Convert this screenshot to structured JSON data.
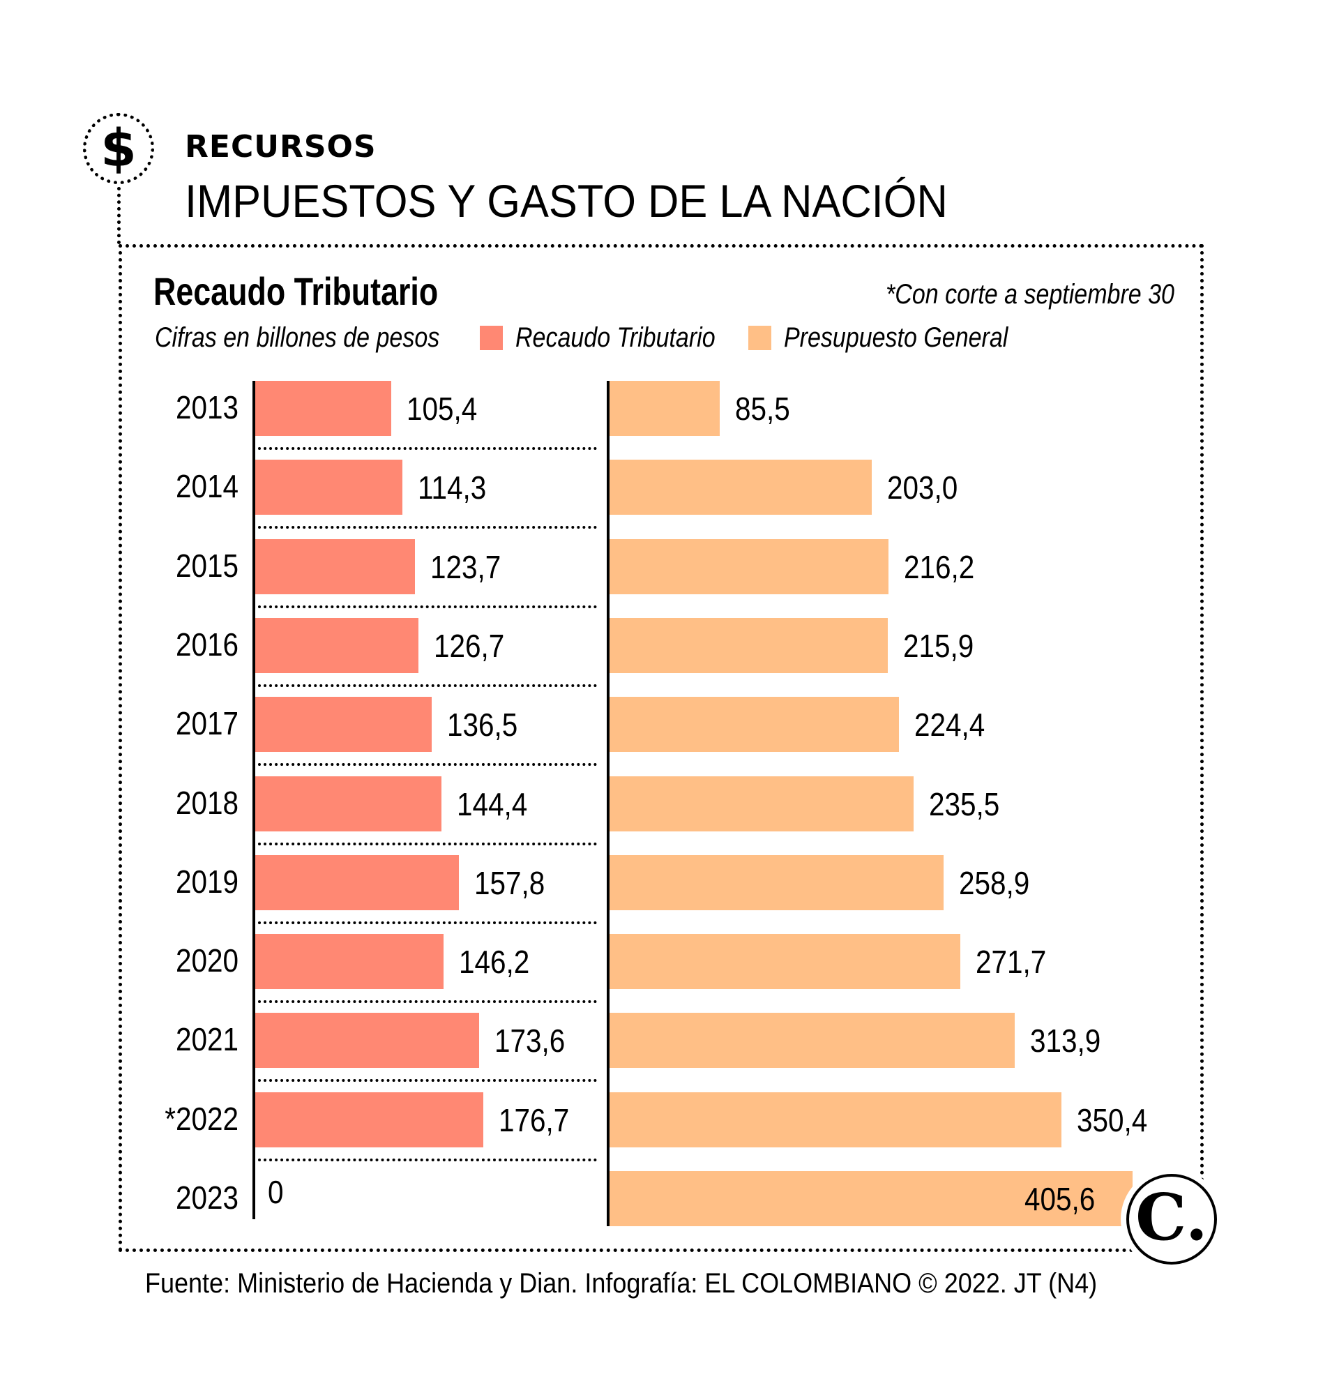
{
  "header": {
    "icon": "dollar-icon",
    "kicker": "RECURSOS",
    "headline": "IMPUESTOS Y GASTO DE LA NACIÓN"
  },
  "chart_data": {
    "type": "bar",
    "orientation": "horizontal",
    "title": "Recaudo Tributario",
    "subtitle": "Cifras en billones de pesos",
    "note": "*Con corte a septiembre 30",
    "categories": [
      "2013",
      "2014",
      "2015",
      "2016",
      "2017",
      "2018",
      "2019",
      "2020",
      "2021",
      "*2022",
      "2023"
    ],
    "series": [
      {
        "name": "Recaudo Tributario",
        "color": "#FF8873",
        "values": [
          105.4,
          114.3,
          123.7,
          126.7,
          136.5,
          144.4,
          157.8,
          146.2,
          173.6,
          176.7,
          0
        ],
        "labels": [
          "105,4",
          "114,3",
          "123,7",
          "126,7",
          "136,5",
          "144,4",
          "157,8",
          "146,2",
          "173,6",
          "176,7",
          "0"
        ]
      },
      {
        "name": "Presupuesto General",
        "color": "#FFBF86",
        "values": [
          85.5,
          203.0,
          216.2,
          215.9,
          224.4,
          235.5,
          258.9,
          271.7,
          313.9,
          350.4,
          405.6
        ],
        "labels": [
          "85,5",
          "203,0",
          "216,2",
          "215,9",
          "224,4",
          "235,5",
          "258,9",
          "271,7",
          "313,9",
          "350,4",
          "405,6"
        ]
      }
    ],
    "legend": "top",
    "grid": false
  },
  "logo": {
    "icon": "el-colombiano-logo-icon",
    "glyph": "C."
  },
  "footer": {
    "source": "Fuente: Ministerio de Hacienda y Dian. Infografía: EL COLOMBIANO © 2022. JT (N4)"
  }
}
